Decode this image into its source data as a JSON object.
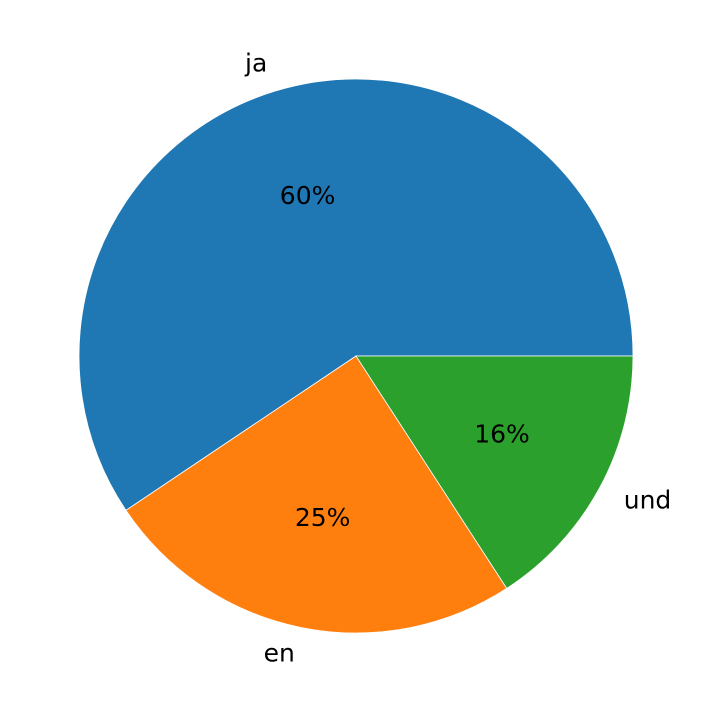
{
  "chart_data": {
    "type": "pie",
    "categories": [
      "ja",
      "en",
      "und"
    ],
    "values": [
      60,
      25,
      16
    ],
    "value_labels": [
      "60%",
      "25%",
      "16%"
    ],
    "colors": [
      "#1f77b4",
      "#ff7f0e",
      "#2ca02c"
    ]
  }
}
